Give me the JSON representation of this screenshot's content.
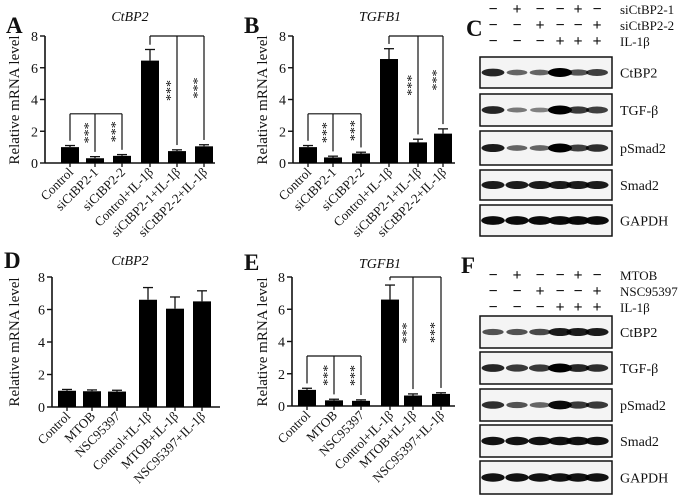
{
  "chart_data": [
    {
      "panel": "A",
      "type": "bar",
      "title": "CtBP2",
      "ylabel": "Relative mRNA level",
      "ylim": [
        0,
        8
      ],
      "yticks": [
        0,
        2,
        4,
        6,
        8
      ],
      "categories": [
        "Control",
        "siCtBP2-1",
        "siCtBP2-2",
        "Control+IL-1β",
        "siCtBP2-1+IL-1β",
        "siCtBP2-2+IL-1β"
      ],
      "values": [
        1.0,
        0.3,
        0.45,
        6.45,
        0.75,
        1.05
      ],
      "errors": [
        0.1,
        0.1,
        0.08,
        0.7,
        0.08,
        0.1
      ],
      "significance": [
        {
          "ref": 0,
          "targets": [
            1,
            2
          ],
          "bracket_y": 3.1,
          "label": "***"
        },
        {
          "ref": 3,
          "targets": [
            4,
            5
          ],
          "bracket_y": 8.0,
          "label": "***"
        }
      ]
    },
    {
      "panel": "B",
      "type": "bar",
      "title": "TGFB1",
      "ylabel": "Relative mRNA level",
      "ylim": [
        0,
        8
      ],
      "yticks": [
        0,
        2,
        4,
        6,
        8
      ],
      "categories": [
        "Control",
        "siCtBP2-1",
        "siCtBP2-2",
        "Control+IL-1β",
        "siCtBP2-1+IL-1β",
        "siCtBP2-2+IL-1β"
      ],
      "values": [
        1.0,
        0.35,
        0.6,
        6.55,
        1.3,
        1.85
      ],
      "errors": [
        0.1,
        0.08,
        0.08,
        0.65,
        0.2,
        0.3
      ],
      "significance": [
        {
          "ref": 0,
          "targets": [
            1,
            2
          ],
          "bracket_y": 3.1,
          "label": "***"
        },
        {
          "ref": 3,
          "targets": [
            4,
            5
          ],
          "bracket_y": 8.0,
          "label": "***"
        }
      ]
    },
    {
      "panel": "D",
      "type": "bar",
      "title": "CtBP2",
      "ylabel": "Relative mRNA level",
      "ylim": [
        0,
        8
      ],
      "yticks": [
        0,
        2,
        4,
        6,
        8
      ],
      "categories": [
        "Control",
        "MTOB",
        "NSC95397",
        "Control+IL-1β",
        "MTOB+IL-1β",
        "NSC95397+IL-1β"
      ],
      "values": [
        1.0,
        0.97,
        0.95,
        6.6,
        6.05,
        6.5
      ],
      "errors": [
        0.08,
        0.08,
        0.08,
        0.75,
        0.72,
        0.65
      ],
      "significance": []
    },
    {
      "panel": "E",
      "type": "bar",
      "title": "TGFB1",
      "ylabel": "Relative mRNA level",
      "ylim": [
        0,
        8
      ],
      "yticks": [
        0,
        2,
        4,
        6,
        8
      ],
      "categories": [
        "Control",
        "MTOB",
        "NSC95397",
        "Control+IL-1β",
        "MTOB+IL-1β",
        "NSC95397+IL-1β"
      ],
      "values": [
        1.0,
        0.35,
        0.32,
        6.6,
        0.65,
        0.75
      ],
      "errors": [
        0.1,
        0.07,
        0.06,
        0.9,
        0.1,
        0.07
      ],
      "significance": [
        {
          "ref": 0,
          "targets": [
            1,
            2
          ],
          "bracket_y": 3.1,
          "label": "***"
        },
        {
          "ref": 3,
          "targets": [
            4,
            5
          ],
          "bracket_y": 8.0,
          "label": "***"
        }
      ]
    }
  ],
  "blots": [
    {
      "panel": "C",
      "conditions": [
        {
          "label": "siCtBP2-1",
          "signs": [
            "−",
            "+",
            "−",
            "−",
            "+",
            "−"
          ]
        },
        {
          "label": "siCtBP2-2",
          "signs": [
            "−",
            "−",
            "+",
            "−",
            "−",
            "+"
          ]
        },
        {
          "label": "IL-1β",
          "signs": [
            "−",
            "−",
            "−",
            "+",
            "+",
            "+"
          ]
        }
      ],
      "rows": [
        {
          "label": "CtBP2",
          "intensity": [
            0.8,
            0.45,
            0.45,
            1.0,
            0.55,
            0.65
          ]
        },
        {
          "label": "TGF-β",
          "intensity": [
            0.8,
            0.35,
            0.3,
            1.0,
            0.7,
            0.65
          ]
        },
        {
          "label": "pSmad2",
          "intensity": [
            0.85,
            0.45,
            0.45,
            1.0,
            0.65,
            0.75
          ]
        },
        {
          "label": "Smad2",
          "intensity": [
            0.85,
            0.85,
            0.85,
            0.85,
            0.85,
            0.85
          ]
        },
        {
          "label": "GAPDH",
          "intensity": [
            0.95,
            0.95,
            0.95,
            0.95,
            0.95,
            0.95
          ]
        }
      ]
    },
    {
      "panel": "F",
      "conditions": [
        {
          "label": "MTOB",
          "signs": [
            "−",
            "+",
            "−",
            "−",
            "+",
            "−"
          ]
        },
        {
          "label": "NSC95397",
          "signs": [
            "−",
            "−",
            "+",
            "−",
            "−",
            "+"
          ]
        },
        {
          "label": "IL-1β",
          "signs": [
            "−",
            "−",
            "−",
            "+",
            "+",
            "+"
          ]
        }
      ],
      "rows": [
        {
          "label": "CtBP2",
          "intensity": [
            0.55,
            0.55,
            0.6,
            0.85,
            0.85,
            0.85
          ]
        },
        {
          "label": "TGF-β",
          "intensity": [
            0.8,
            0.7,
            0.7,
            1.0,
            0.8,
            0.75
          ]
        },
        {
          "label": "pSmad2",
          "intensity": [
            0.75,
            0.55,
            0.45,
            0.95,
            0.7,
            0.7
          ]
        },
        {
          "label": "Smad2",
          "intensity": [
            0.9,
            0.9,
            0.9,
            0.9,
            0.9,
            0.9
          ]
        },
        {
          "label": "GAPDH",
          "intensity": [
            0.9,
            0.9,
            0.9,
            0.9,
            0.9,
            0.9
          ]
        }
      ]
    }
  ],
  "colors": {
    "bar": "#000000",
    "ink": "#111111",
    "blot_bg": "#f4f4f4"
  }
}
